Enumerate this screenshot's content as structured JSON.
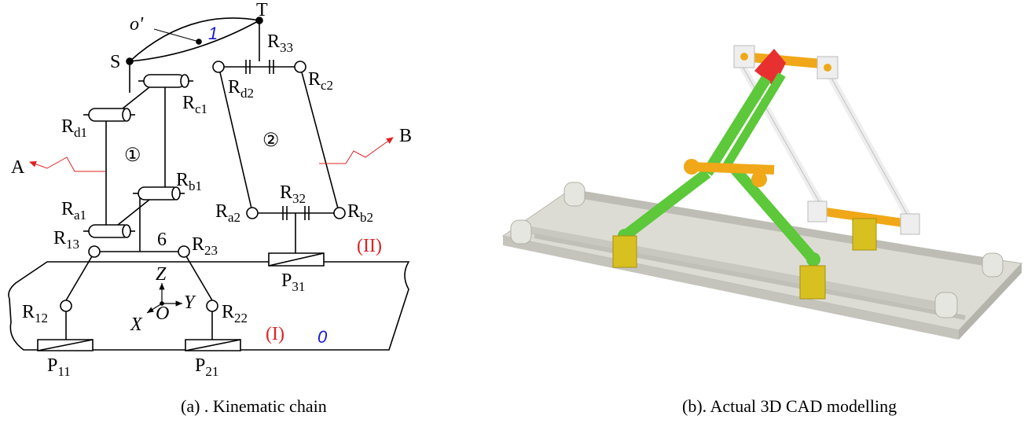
{
  "panel_a": {
    "caption": "(a)  . Kinematic chain",
    "labels": {
      "o_prime": "o'",
      "T": "T",
      "S": "S",
      "body_one": "1",
      "body_zero": "0",
      "loop_one": "①",
      "loop_two": "②",
      "A": "A",
      "B": "B",
      "six": "6",
      "Z": "Z",
      "Y": "Y",
      "X": "X",
      "O": "O",
      "level_I": "(I)",
      "level_II": "(II)",
      "R": "R",
      "P": "P",
      "Rc1_sub": "c1",
      "Rd1_sub": "d1",
      "Rb1_sub": "b1",
      "Ra1_sub": "a1",
      "R33_sub": "33",
      "Rd2_sub": "d2",
      "Rc2_sub": "c2",
      "R32_sub": "32",
      "Ra2_sub": "a2",
      "Rb2_sub": "b2",
      "R13_sub": "13",
      "R23_sub": "23",
      "R12_sub": "12",
      "R22_sub": "22",
      "P11_sub": "11",
      "P21_sub": "21",
      "P31_sub": "31"
    },
    "colors": {
      "annotation_red": "#e02020",
      "body_blue": "#1818d0"
    }
  },
  "panel_b": {
    "caption": "(b). Actual 3D CAD modelling",
    "colors": {
      "green_links": "#5cc83a",
      "orange_joints": "#f0a818",
      "red_platform": "#e83030",
      "yellow_sliders": "#d8c020",
      "grey_base": "#d8d8d0",
      "white_links": "#f2f2f2"
    }
  }
}
